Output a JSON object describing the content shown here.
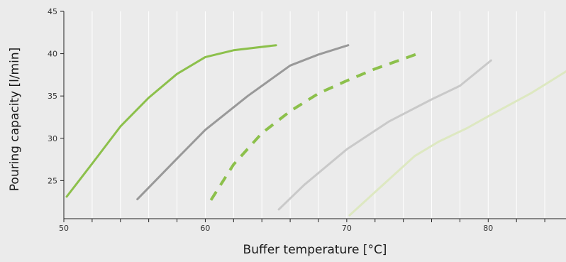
{
  "chart_data": {
    "type": "line",
    "title": "",
    "xlabel": "Buffer temperature [°C]",
    "ylabel": "Pouring capacity [l/min]",
    "xlim": [
      50,
      85.5
    ],
    "ylim": [
      20.5,
      45
    ],
    "x_ticks": [
      "50",
      "60",
      "70",
      "80"
    ],
    "y_ticks": [
      "25",
      "30",
      "35",
      "40",
      "45"
    ],
    "grid": "vertical",
    "background": "#ebebeb",
    "series": [
      {
        "color": "#8cc04b",
        "style": "solid",
        "points": [
          [
            50.2,
            23.1
          ],
          [
            52,
            27
          ],
          [
            54,
            31.4
          ],
          [
            56,
            34.8
          ],
          [
            58,
            37.6
          ],
          [
            60,
            39.6
          ],
          [
            62,
            40.4
          ],
          [
            65,
            41.0
          ]
        ]
      },
      {
        "color": "#999999",
        "style": "solid",
        "points": [
          [
            55.2,
            22.8
          ],
          [
            58,
            27.6
          ],
          [
            60,
            31.0
          ],
          [
            63,
            35.0
          ],
          [
            66,
            38.6
          ],
          [
            68,
            39.9
          ],
          [
            70.1,
            41.0
          ]
        ]
      },
      {
        "color": "#8cc04b",
        "style": "dashed",
        "points": [
          [
            60.4,
            22.7
          ],
          [
            62,
            26.9
          ],
          [
            64,
            30.6
          ],
          [
            66,
            33.2
          ],
          [
            68,
            35.3
          ],
          [
            70,
            36.8
          ],
          [
            72,
            38.2
          ],
          [
            75.2,
            40.1
          ]
        ]
      },
      {
        "color": "#c9c9c9",
        "style": "solid",
        "points": [
          [
            65.2,
            21.6
          ],
          [
            67,
            24.5
          ],
          [
            70,
            28.7
          ],
          [
            73,
            32.0
          ],
          [
            76,
            34.6
          ],
          [
            78,
            36.2
          ],
          [
            80.2,
            39.2
          ]
        ]
      },
      {
        "color": "#dde8c1",
        "style": "solid",
        "points": [
          [
            70.2,
            20.9
          ],
          [
            72.5,
            24.4
          ],
          [
            74.8,
            27.9
          ],
          [
            76.5,
            29.6
          ],
          [
            78.5,
            31.2
          ],
          [
            80,
            32.6
          ],
          [
            83,
            35.3
          ],
          [
            85.5,
            37.9
          ]
        ]
      }
    ]
  }
}
